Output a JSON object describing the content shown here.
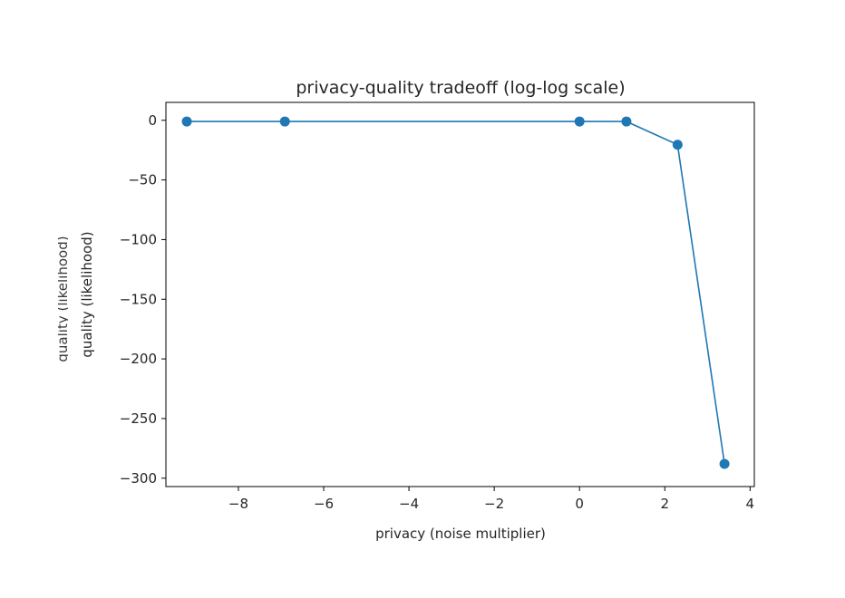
{
  "chart_data": {
    "type": "line",
    "title": "privacy-quality tradeoff (log-log scale)",
    "xlabel": "privacy (noise multiplier)",
    "ylabel": "quality (likelihood)",
    "xlim": [
      -9.7,
      4.1
    ],
    "ylim": [
      -307,
      15
    ],
    "x_ticks": [
      -8,
      -6,
      -4,
      -2,
      0,
      2,
      4
    ],
    "x_tick_labels": [
      "−8",
      "−6",
      "−4",
      "−2",
      "0",
      "2",
      "4"
    ],
    "y_ticks": [
      0,
      -50,
      -100,
      -150,
      -200,
      -250,
      -300
    ],
    "y_tick_labels": [
      "0",
      "−50",
      "−100",
      "−150",
      "−200",
      "−250",
      "−300"
    ],
    "grid": false,
    "series": [
      {
        "color": "#1f77b4",
        "marker": "circle",
        "x": [
          -9.21,
          -6.91,
          0.0,
          1.1,
          2.3,
          3.4
        ],
        "y": [
          -1,
          -1,
          -1,
          -1,
          -20.5,
          -288
        ]
      }
    ]
  }
}
